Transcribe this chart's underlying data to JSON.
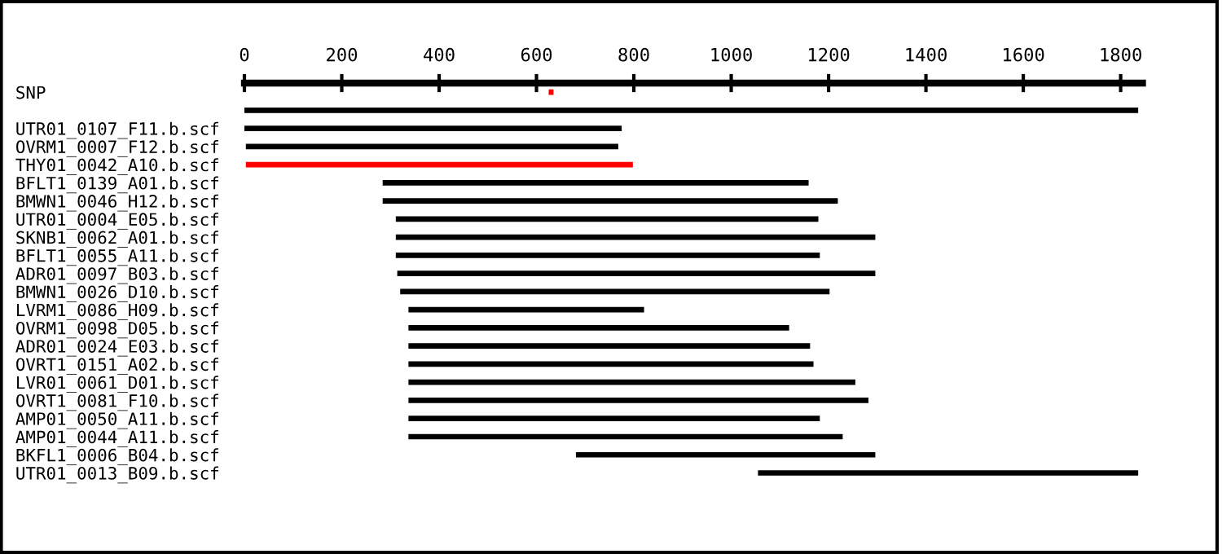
{
  "chart_data": {
    "type": "bar",
    "orientation": "horizontal",
    "categories": [
      "SNP",
      null,
      "UTR01_0107_F11.b.scf",
      "OVRM1_0007_F12.b.scf",
      "THY01_0042_A10.b.scf",
      "BFLT1_0139_A01.b.scf",
      "BMWN1_0046_H12.b.scf",
      "UTR01_0004_E05.b.scf",
      "SKNB1_0062_A01.b.scf",
      "BFLT1_0055_A11.b.scf",
      "ADR01_0097_B03.b.scf",
      "BMWN1_0026_D10.b.scf",
      "LVRM1_0086_H09.b.scf",
      "OVRM1_0098_D05.b.scf",
      "ADR01_0024_E03.b.scf",
      "OVRT1_0151_A02.b.scf",
      "LVR01_0061_D01.b.scf",
      "OVRT1_0081_F10.b.scf",
      "AMP01_0050_A11.b.scf",
      "AMP01_0044_A11.b.scf",
      "BKFL1_0006_B04.b.scf",
      "UTR01_0013_B09.b.scf"
    ],
    "base": [
      625,
      0,
      0,
      3,
      3,
      284,
      284,
      311,
      311,
      311,
      314,
      320,
      337,
      337,
      337,
      337,
      337,
      337,
      337,
      337,
      681,
      1055
    ],
    "values": [
      10,
      1836,
      775,
      765,
      795,
      875,
      935,
      868,
      985,
      871,
      982,
      882,
      484,
      782,
      825,
      832,
      918,
      945,
      845,
      892,
      615,
      781
    ],
    "colors": [
      "#ff0000",
      "#000000",
      "#000000",
      "#000000",
      "#ff0000",
      "#000000",
      "#000000",
      "#000000",
      "#000000",
      "#000000",
      "#000000",
      "#000000",
      "#000000",
      "#000000",
      "#000000",
      "#000000",
      "#000000",
      "#000000",
      "#000000",
      "#000000",
      "#000000",
      "#000000"
    ],
    "xlim": [
      0,
      1845
    ],
    "xticks": [
      0,
      200,
      400,
      600,
      800,
      1000,
      1200,
      1400,
      1600,
      1800
    ],
    "grid": false,
    "legend": false
  }
}
